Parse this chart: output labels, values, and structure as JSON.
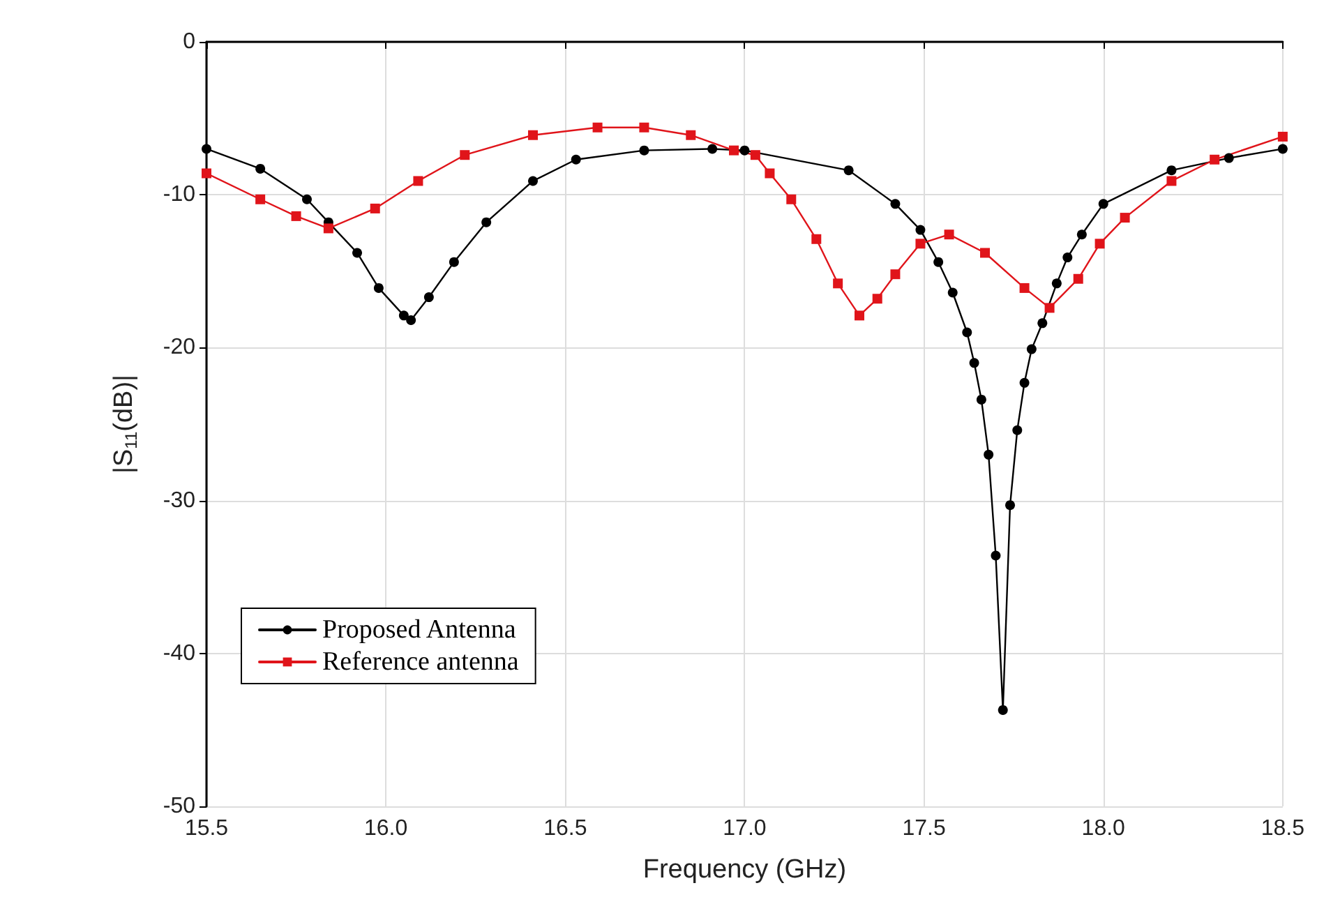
{
  "chart_data": {
    "type": "line",
    "xlabel": "Frequency (GHz)",
    "ylabel": "|S$_{11}$(dB)|",
    "xlim": [
      15.5,
      18.5
    ],
    "xticks": [
      15.5,
      {
        "value": 16,
        "label": "16.0"
      },
      16.5,
      {
        "value": 17,
        "label": "17.0"
      },
      17.5,
      {
        "value": 18,
        "label": "18.0"
      },
      18.5
    ],
    "ylim": [
      -50,
      0
    ],
    "yticks": [
      -50,
      -40,
      -30,
      -20,
      -10,
      0
    ],
    "grid": true,
    "legend": "bottom left",
    "line_style": "solid",
    "series": [
      {
        "name": "Proposed Antenna",
        "color": "#000000",
        "marker": "circle",
        "x": [
          15.5,
          15.65,
          15.78,
          15.84,
          15.92,
          15.98,
          16.05,
          16.07,
          16.12,
          16.19,
          16.28,
          16.41,
          16.53,
          16.72,
          16.91,
          17.0,
          17.29,
          17.42,
          17.49,
          17.54,
          17.58,
          17.62,
          17.64,
          17.66,
          17.68,
          17.7,
          17.72,
          17.74,
          17.76,
          17.78,
          17.8,
          17.83,
          17.87,
          17.9,
          17.94,
          18.0,
          18.19,
          18.35,
          18.5
        ],
        "values": [
          -7.0,
          -8.3,
          -10.3,
          -11.8,
          -13.8,
          -16.1,
          -17.9,
          -18.2,
          -16.7,
          -14.4,
          -11.8,
          -9.1,
          -7.7,
          -7.1,
          -7.0,
          -7.1,
          -8.4,
          -10.6,
          -12.3,
          -14.4,
          -16.4,
          -19.0,
          -21.0,
          -23.4,
          -27.0,
          -33.6,
          -43.7,
          -30.3,
          -25.4,
          -22.3,
          -20.1,
          -18.4,
          -15.8,
          -14.1,
          -12.6,
          -10.6,
          -8.4,
          -7.6,
          -7.0
        ]
      },
      {
        "name": "Reference antenna",
        "color": "#e0141a",
        "marker": "square",
        "x": [
          15.5,
          15.65,
          15.75,
          15.84,
          15.97,
          16.09,
          16.22,
          16.41,
          16.59,
          16.72,
          16.85,
          16.97,
          17.03,
          17.07,
          17.13,
          17.2,
          17.26,
          17.32,
          17.37,
          17.42,
          17.49,
          17.57,
          17.67,
          17.78,
          17.85,
          17.93,
          17.99,
          18.06,
          18.19,
          18.31,
          18.5
        ],
        "values": [
          -8.6,
          -10.3,
          -11.4,
          -12.2,
          -10.9,
          -9.1,
          -7.4,
          -6.1,
          -5.6,
          -5.6,
          -6.1,
          -7.1,
          -7.4,
          -8.6,
          -10.3,
          -12.9,
          -15.8,
          -17.9,
          -16.8,
          -15.2,
          -13.2,
          -12.6,
          -13.8,
          -16.1,
          -17.4,
          -15.5,
          -13.2,
          -11.5,
          -9.1,
          -7.7,
          -6.2
        ]
      }
    ]
  }
}
